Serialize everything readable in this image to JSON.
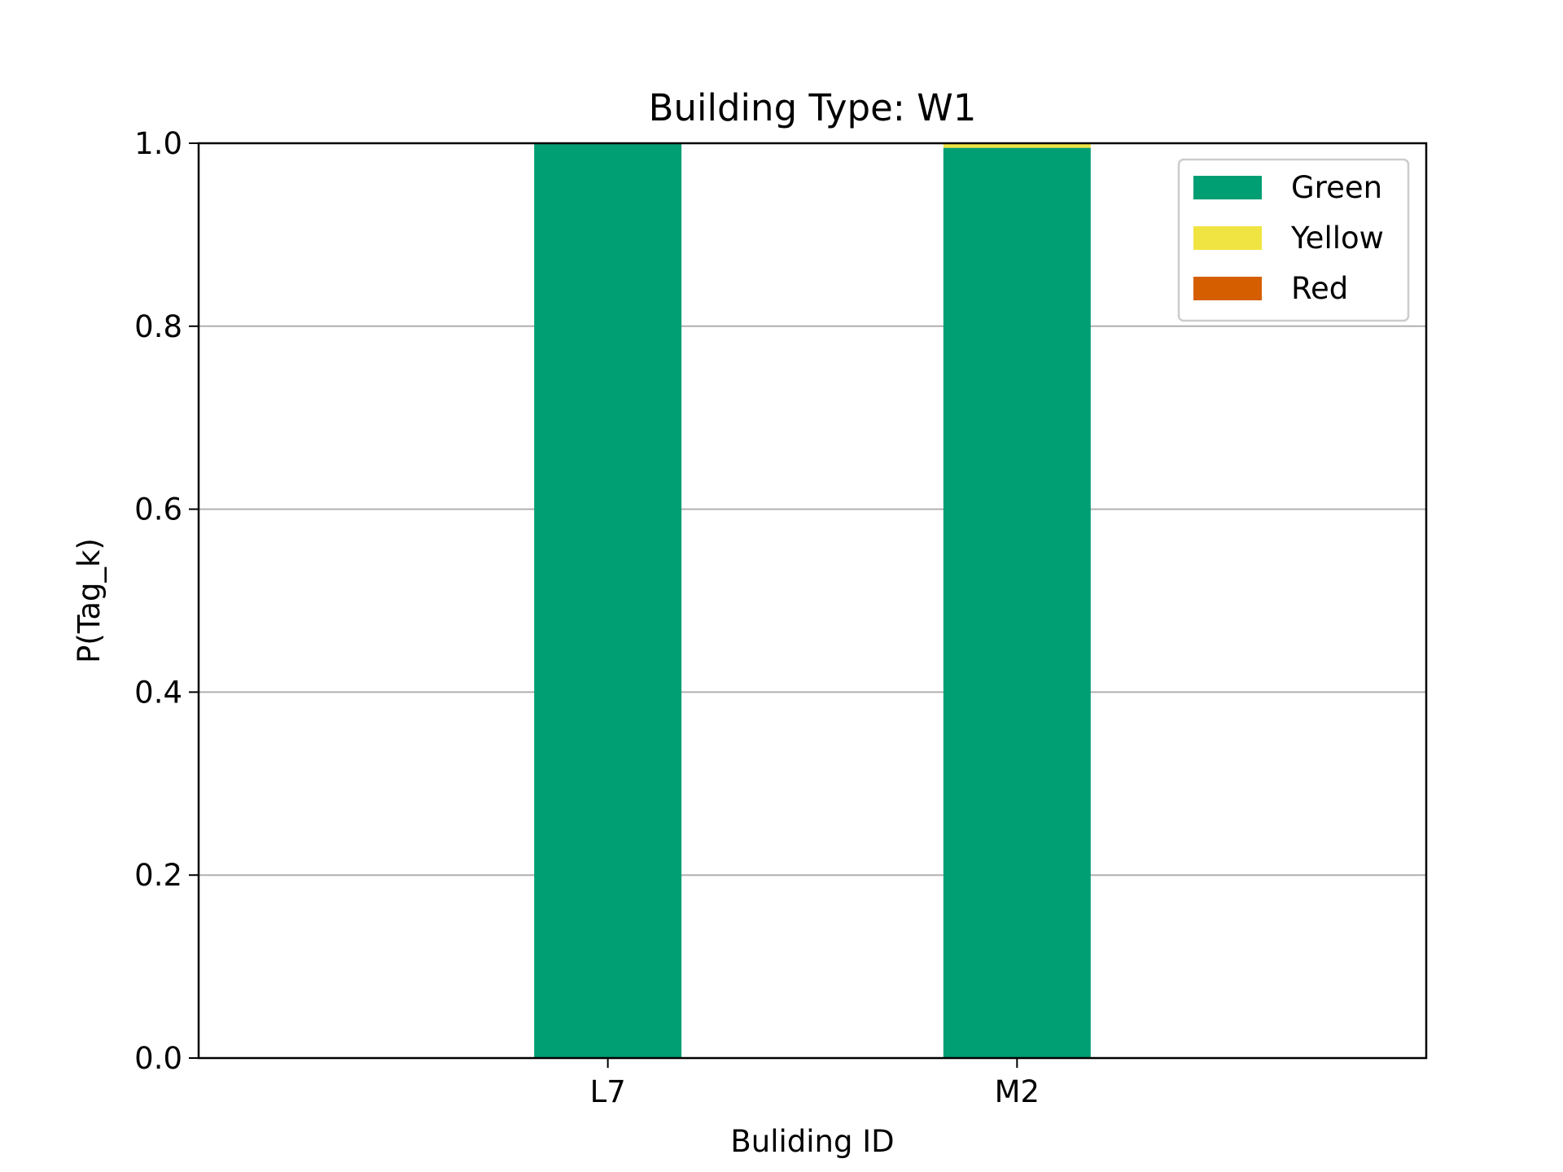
{
  "chart_data": {
    "type": "bar",
    "stacked": true,
    "title": "Building Type: W1",
    "xlabel": "Buliding ID",
    "ylabel": "P(Tag_k)",
    "categories": [
      "L7",
      "M2"
    ],
    "series": [
      {
        "name": "Green",
        "color": "#009E73",
        "values": [
          1.0,
          0.995
        ]
      },
      {
        "name": "Yellow",
        "color": "#F0E442",
        "values": [
          0.0,
          0.005
        ]
      },
      {
        "name": "Red",
        "color": "#D55E00",
        "values": [
          0.0,
          0.0
        ]
      }
    ],
    "ylim": [
      0,
      1.0
    ],
    "yticks": [
      "0.0",
      "0.2",
      "0.4",
      "0.6",
      "0.8",
      "1.0"
    ],
    "grid": "horizontal",
    "legend_position": "top-right"
  }
}
